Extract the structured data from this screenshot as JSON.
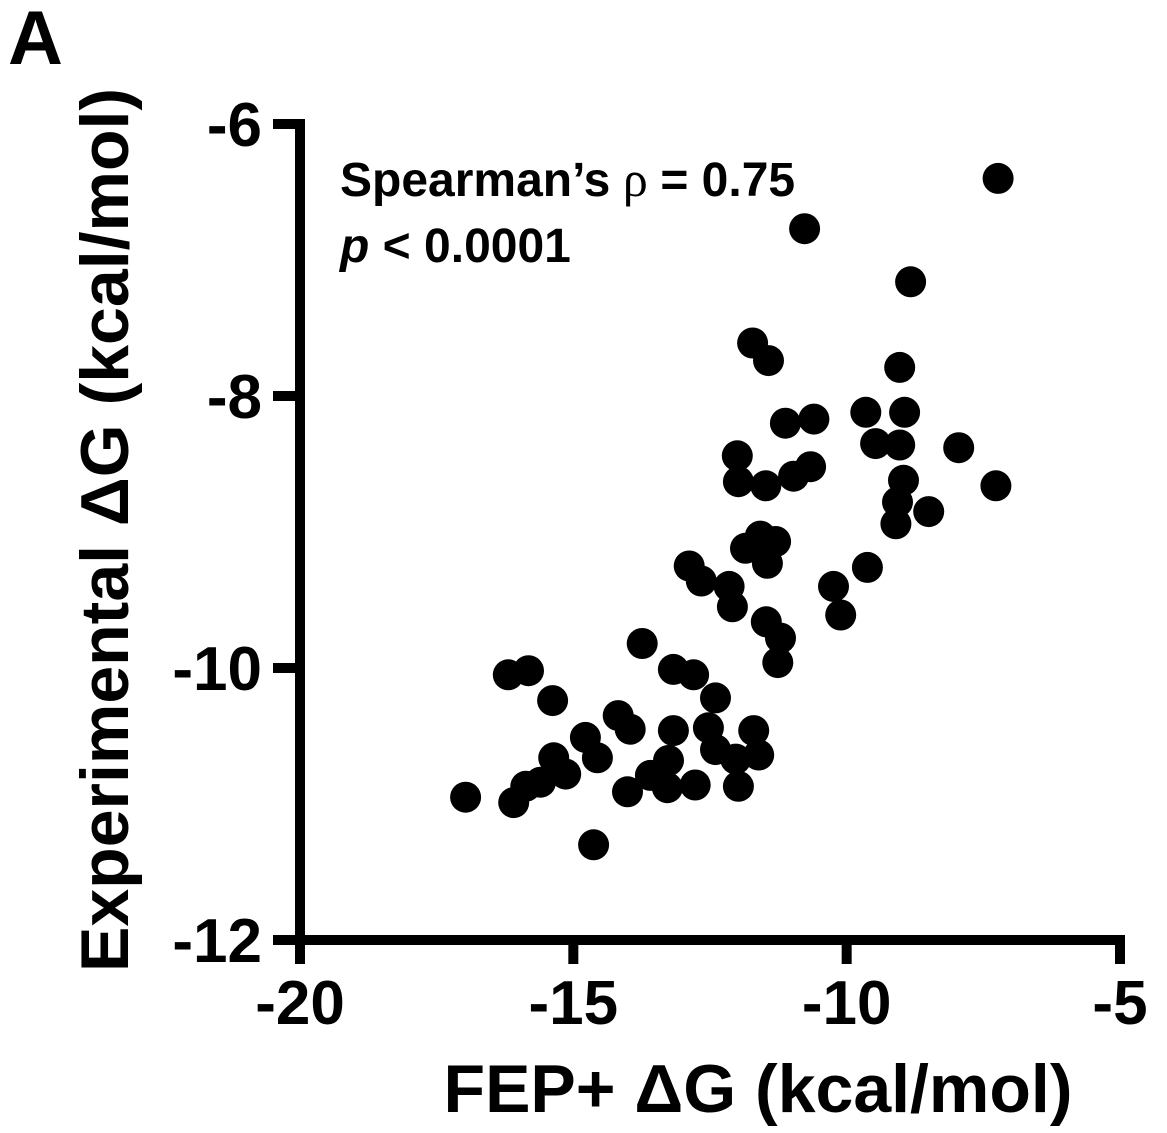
{
  "panel_label": "A",
  "colors": {
    "foreground": "#000000",
    "background": "#ffffff",
    "marker": "#000000"
  },
  "annotation": {
    "line1_prefix": "Spearman’s",
    "line1_rho": " ρ ",
    "line1_suffix": "= 0.75",
    "line2_p": "p",
    "line2_rest": " < 0.0001"
  },
  "chart_data": {
    "type": "scatter",
    "title": "",
    "xlabel": "FEP+ ΔG (kcal/mol)",
    "ylabel": "Experimental ΔG (kcal/mol)",
    "xlim": [
      -20,
      -5
    ],
    "ylim": [
      -12,
      -6
    ],
    "xticks": [
      -20,
      -15,
      -10,
      -5
    ],
    "yticks": [
      -6,
      -8,
      -10,
      -12
    ],
    "grid": false,
    "legend_position": "none",
    "marker": "filled-circle",
    "stats": {
      "spearman_rho": 0.75,
      "p_value": "< 0.0001"
    },
    "points": [
      [
        -7.23,
        -6.4
      ],
      [
        -10.77,
        -6.77
      ],
      [
        -8.83,
        -7.16
      ],
      [
        -11.72,
        -7.61
      ],
      [
        -11.43,
        -7.74
      ],
      [
        -9.03,
        -7.79
      ],
      [
        -9.65,
        -8.12
      ],
      [
        -8.94,
        -8.12
      ],
      [
        -11.12,
        -8.2
      ],
      [
        -10.6,
        -8.17
      ],
      [
        -9.47,
        -8.35
      ],
      [
        -9.03,
        -8.36
      ],
      [
        -7.95,
        -8.38
      ],
      [
        -12.0,
        -8.44
      ],
      [
        -10.66,
        -8.52
      ],
      [
        -10.97,
        -8.59
      ],
      [
        -11.98,
        -8.63
      ],
      [
        -11.48,
        -8.66
      ],
      [
        -7.27,
        -8.66
      ],
      [
        -8.96,
        -8.62
      ],
      [
        -9.07,
        -8.78
      ],
      [
        -9.1,
        -8.94
      ],
      [
        -8.5,
        -8.85
      ],
      [
        -11.58,
        -9.03
      ],
      [
        -11.3,
        -9.07
      ],
      [
        -11.85,
        -9.12
      ],
      [
        -11.45,
        -9.23
      ],
      [
        -9.62,
        -9.26
      ],
      [
        -12.88,
        -9.25
      ],
      [
        -12.66,
        -9.36
      ],
      [
        -12.15,
        -9.4
      ],
      [
        -12.09,
        -9.55
      ],
      [
        -10.24,
        -9.4
      ],
      [
        -10.11,
        -9.61
      ],
      [
        -11.47,
        -9.66
      ],
      [
        -11.21,
        -9.78
      ],
      [
        -11.26,
        -9.96
      ],
      [
        -13.74,
        -9.82
      ],
      [
        -13.17,
        -10.01
      ],
      [
        -12.8,
        -10.05
      ],
      [
        -16.19,
        -10.05
      ],
      [
        -15.82,
        -10.02
      ],
      [
        -15.38,
        -10.24
      ],
      [
        -14.78,
        -10.51
      ],
      [
        -14.56,
        -10.66
      ],
      [
        -15.36,
        -10.66
      ],
      [
        -15.14,
        -10.78
      ],
      [
        -15.6,
        -10.84
      ],
      [
        -15.87,
        -10.87
      ],
      [
        -16.09,
        -10.99
      ],
      [
        -16.97,
        -10.95
      ],
      [
        -14.63,
        -11.3
      ],
      [
        -12.4,
        -10.22
      ],
      [
        -14.18,
        -10.35
      ],
      [
        -13.96,
        -10.45
      ],
      [
        -13.17,
        -10.46
      ],
      [
        -12.53,
        -10.44
      ],
      [
        -11.7,
        -10.46
      ],
      [
        -12.4,
        -10.6
      ],
      [
        -12.03,
        -10.67
      ],
      [
        -11.61,
        -10.64
      ],
      [
        -13.26,
        -10.68
      ],
      [
        -13.59,
        -10.79
      ],
      [
        -14.01,
        -10.91
      ],
      [
        -13.28,
        -10.88
      ],
      [
        -12.77,
        -10.86
      ],
      [
        -11.98,
        -10.87
      ]
    ]
  }
}
